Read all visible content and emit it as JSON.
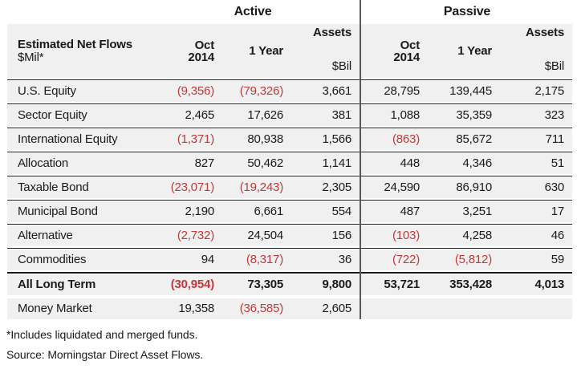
{
  "report": {
    "groups": {
      "active": "Active",
      "passive": "Passive"
    },
    "header": {
      "title": "Estimated Net Flows",
      "unit": "$Mil*",
      "oct_line1": "Oct",
      "oct_line2": "2014",
      "one_year_active": "1 Year",
      "one_year_passive": "1 Year",
      "assets_active": "Assets",
      "assets_unit_active": "$Bil",
      "assets_passive": "Assets",
      "assets_unit_passive": "$Bil",
      "oct_line1_passive": "Oct",
      "oct_line2_passive": "2014"
    },
    "rows": [
      {
        "label": "U.S. Equity",
        "sep": "thin",
        "bold": false,
        "a_oct": "(9,356)",
        "a_year": "(79,326)",
        "a_assets": "3,661",
        "p_oct": "28,795",
        "p_year": "139,445",
        "p_assets": "2,175"
      },
      {
        "label": "Sector Equity",
        "sep": "thin",
        "bold": false,
        "a_oct": "2,465",
        "a_year": "17,626",
        "a_assets": "381",
        "p_oct": "1,088",
        "p_year": "35,359",
        "p_assets": "323"
      },
      {
        "label": "International Equity",
        "sep": "thin",
        "bold": false,
        "a_oct": "(1,371)",
        "a_year": "80,938",
        "a_assets": "1,566",
        "p_oct": "(863)",
        "p_year": "85,672",
        "p_assets": "711"
      },
      {
        "label": "Allocation",
        "sep": "thin",
        "bold": false,
        "a_oct": "827",
        "a_year": "50,462",
        "a_assets": "1,141",
        "p_oct": "448",
        "p_year": "4,346",
        "p_assets": "51"
      },
      {
        "label": "Taxable Bond",
        "sep": "thin",
        "bold": false,
        "a_oct": "(23,071)",
        "a_year": "(19,243)",
        "a_assets": "2,305",
        "p_oct": "24,590",
        "p_year": "86,910",
        "p_assets": "630"
      },
      {
        "label": "Municipal Bond",
        "sep": "thin",
        "bold": false,
        "a_oct": "2,190",
        "a_year": "6,661",
        "a_assets": "554",
        "p_oct": "487",
        "p_year": "3,251",
        "p_assets": "17"
      },
      {
        "label": "Alternative",
        "sep": "thin",
        "bold": false,
        "a_oct": "(2,732)",
        "a_year": "24,504",
        "a_assets": "156",
        "p_oct": "(103)",
        "p_year": "4,258",
        "p_assets": "46"
      },
      {
        "label": "Commodities",
        "sep": "thin",
        "bold": false,
        "a_oct": "94",
        "a_year": "(8,317)",
        "a_assets": "36",
        "p_oct": "(722)",
        "p_year": "(5,812)",
        "p_assets": "59"
      },
      {
        "label": "All Long Term",
        "sep": "thick",
        "bold": true,
        "a_oct": "(30,954)",
        "a_year": "73,305",
        "a_assets": "9,800",
        "p_oct": "53,721",
        "p_year": "353,428",
        "p_assets": "4,013"
      },
      {
        "label": "Money Market",
        "sep": "none",
        "bold": false,
        "a_oct": "19,358",
        "a_year": "(36,585)",
        "a_assets": "2,605",
        "p_oct": "",
        "p_year": "",
        "p_assets": ""
      }
    ],
    "footnotes": {
      "note1": "*Includes liquidated and merged funds.",
      "note2": "Source: Morningstar Direct Asset Flows."
    },
    "colors": {
      "negative": "#c13938",
      "row_bg": "#f0f0f0",
      "divider": "#58585a"
    }
  }
}
